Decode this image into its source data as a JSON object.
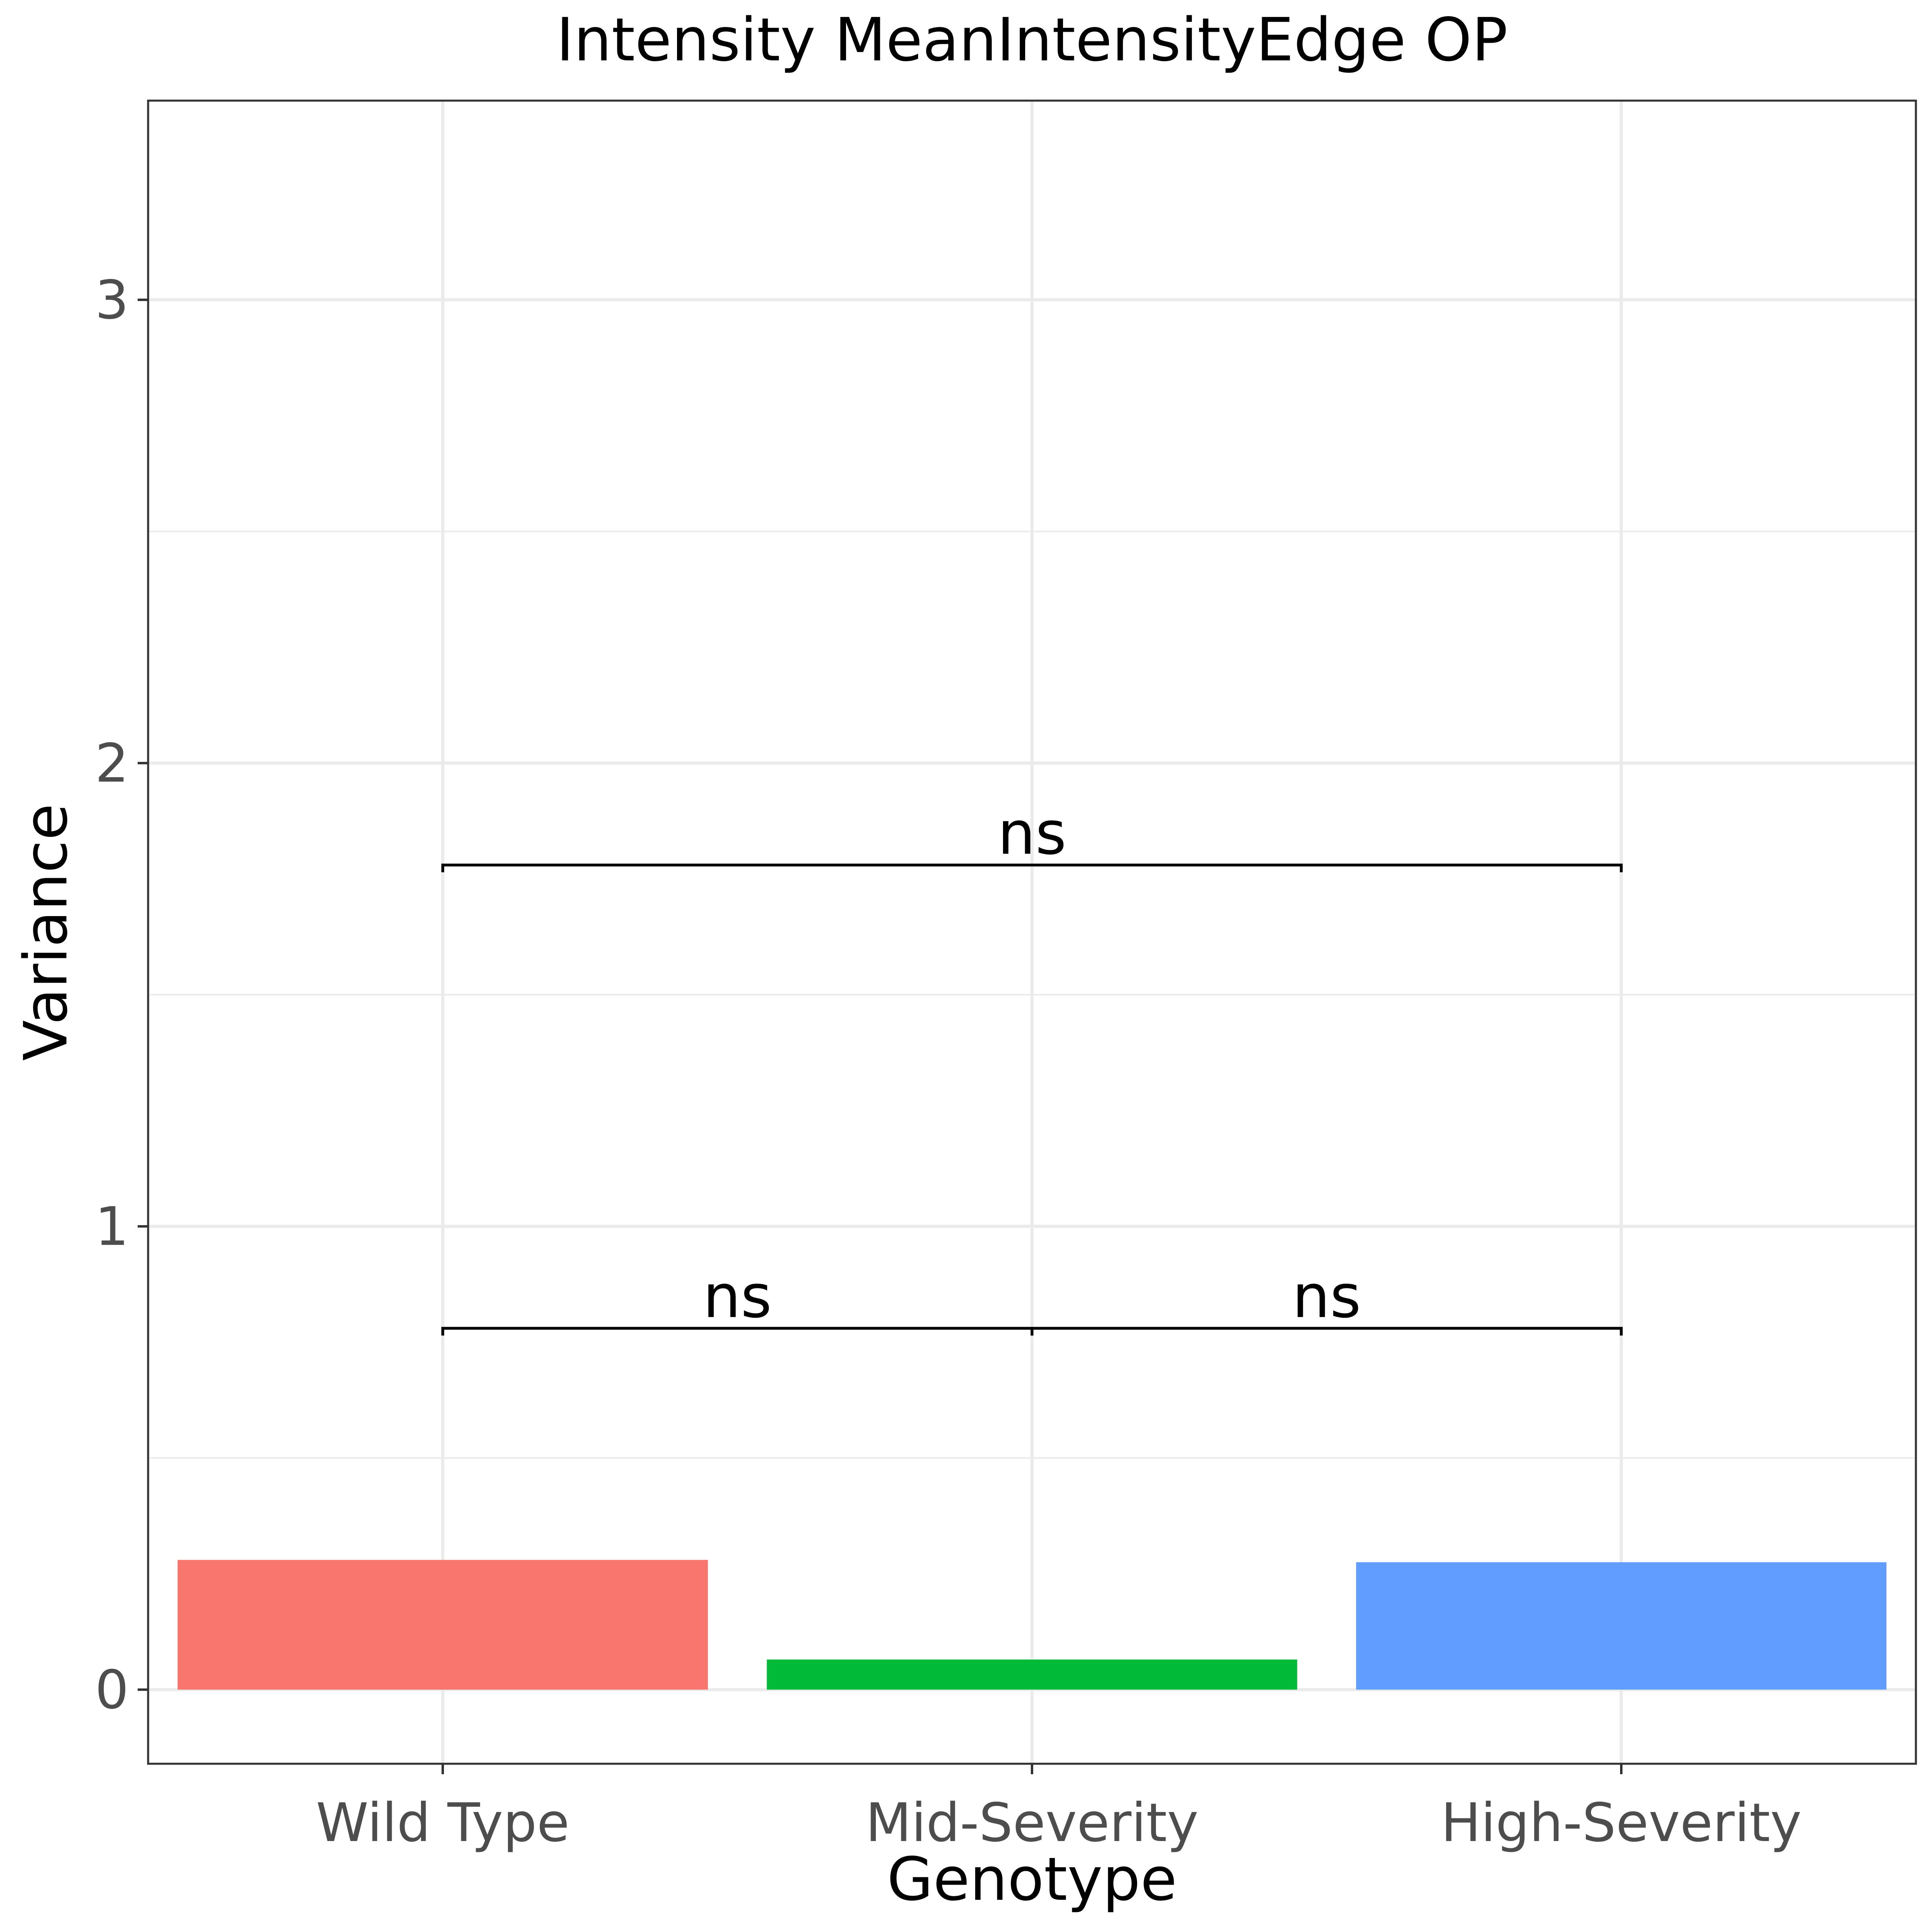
{
  "chart_data": {
    "type": "bar",
    "title": "Intensity MeanIntensityEdge OP",
    "xlabel": "Genotype",
    "ylabel": "Variance",
    "categories": [
      "Wild Type",
      "Mid-Severity",
      "High-Severity"
    ],
    "values": [
      0.28,
      0.065,
      0.275
    ],
    "colors": [
      "#F8766D",
      "#00BA38",
      "#619CFF"
    ],
    "ylim": [
      -0.16,
      3.43
    ],
    "yticks": [
      0,
      1,
      2,
      3
    ],
    "ytick_labels": [
      "0",
      "1",
      "2",
      "3"
    ],
    "grid": true,
    "legend": "none",
    "comparisons": [
      {
        "from": "Wild Type",
        "to": "Mid-Severity",
        "y": 0.78,
        "label": "ns"
      },
      {
        "from": "Mid-Severity",
        "to": "High-Severity",
        "y": 0.78,
        "label": "ns"
      },
      {
        "from": "Wild Type",
        "to": "High-Severity",
        "y": 1.78,
        "label": "ns"
      }
    ]
  }
}
